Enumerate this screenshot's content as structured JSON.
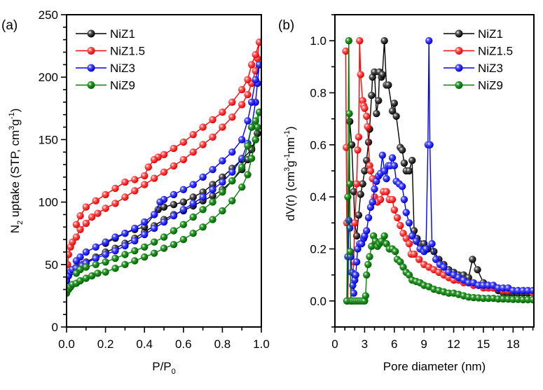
{
  "chart_data": [
    {
      "type": "line",
      "panel_label": "(a)",
      "title": "",
      "xlabel": "P/P",
      "xlabel_sub": "0",
      "ylabel_parts": [
        "N",
        "2",
        " uptake (STP, cm",
        "3",
        "g",
        "-1",
        ")"
      ],
      "xlim": [
        0.0,
        1.0
      ],
      "ylim": [
        0,
        250
      ],
      "xticks": [
        0.0,
        0.2,
        0.4,
        0.6,
        0.8,
        1.0
      ],
      "xtick_labels": [
        "0.0",
        "0.2",
        "0.4",
        "0.6",
        "0.8",
        "1.0"
      ],
      "yticks": [
        0,
        50,
        100,
        150,
        200,
        250
      ],
      "ytick_labels": [
        "0",
        "50",
        "100",
        "150",
        "200",
        "250"
      ],
      "grid": false,
      "legend_position": "top-left",
      "series": [
        {
          "name": "NiZ1",
          "color": "#000000",
          "adsorption": {
            "x": [
              0.0,
              0.01,
              0.03,
              0.05,
              0.08,
              0.1,
              0.15,
              0.2,
              0.25,
              0.3,
              0.35,
              0.4,
              0.45,
              0.5,
              0.55,
              0.6,
              0.65,
              0.7,
              0.75,
              0.8,
              0.85,
              0.9,
              0.93,
              0.95,
              0.97,
              0.98
            ],
            "y": [
              37,
              42,
              46,
              48,
              50,
              52,
              56,
              60,
              63,
              67,
              71,
              76,
              81,
              86,
              90,
              93,
              97,
              101,
              105,
              110,
              117,
              126,
              134,
              143,
              150,
              155
            ]
          },
          "desorption": {
            "x": [
              0.98,
              0.95,
              0.9,
              0.85,
              0.8,
              0.75,
              0.7,
              0.65,
              0.6,
              0.55,
              0.5,
              0.47,
              0.45,
              0.4,
              0.35,
              0.3,
              0.25,
              0.2
            ],
            "y": [
              155,
              142,
              134,
              127,
              120,
              114,
              108,
              104,
              100,
              98,
              96,
              94,
              90,
              80,
              78,
              75,
              71,
              67
            ]
          }
        },
        {
          "name": "NiZ1.5",
          "color": "#ff0000",
          "adsorption": {
            "x": [
              0.0,
              0.005,
              0.01,
              0.02,
              0.03,
              0.05,
              0.07,
              0.1,
              0.13,
              0.16,
              0.2,
              0.25,
              0.3,
              0.35,
              0.4,
              0.45,
              0.5,
              0.55,
              0.6,
              0.65,
              0.7,
              0.75,
              0.8,
              0.85,
              0.9,
              0.93,
              0.95,
              0.97,
              0.98,
              0.99
            ],
            "y": [
              40,
              50,
              58,
              64,
              68,
              72,
              78,
              83,
              88,
              91,
              95,
              99,
              104,
              109,
              114,
              119,
              124,
              129,
              134,
              140,
              146,
              152,
              160,
              168,
              178,
              186,
              195,
              205,
              215,
              228
            ]
          },
          "desorption": {
            "x": [
              0.99,
              0.97,
              0.95,
              0.93,
              0.9,
              0.85,
              0.8,
              0.75,
              0.7,
              0.65,
              0.6,
              0.55,
              0.5,
              0.47,
              0.45,
              0.42,
              0.4,
              0.35,
              0.3,
              0.25,
              0.2,
              0.15,
              0.1,
              0.07,
              0.05
            ],
            "y": [
              228,
              218,
              210,
              198,
              190,
              180,
              172,
              166,
              160,
              154,
              148,
              143,
              138,
              136,
              134,
              128,
              121,
              118,
              116,
              111,
              106,
              101,
              96,
              89,
              82
            ]
          }
        },
        {
          "name": "NiZ3",
          "color": "#0000ff",
          "adsorption": {
            "x": [
              0.0,
              0.01,
              0.02,
              0.03,
              0.05,
              0.08,
              0.1,
              0.15,
              0.2,
              0.25,
              0.3,
              0.35,
              0.4,
              0.45,
              0.5,
              0.55,
              0.6,
              0.65,
              0.7,
              0.75,
              0.8,
              0.85,
              0.9,
              0.93,
              0.95,
              0.97,
              0.98,
              0.99
            ],
            "y": [
              37,
              41,
              44,
              46,
              47,
              49,
              51,
              55,
              58,
              61,
              65,
              69,
              74,
              79,
              84,
              89,
              94,
              99,
              104,
              110,
              116,
              124,
              135,
              147,
              160,
              180,
              195,
              210
            ]
          },
          "desorption": {
            "x": [
              0.99,
              0.97,
              0.95,
              0.93,
              0.9,
              0.85,
              0.8,
              0.75,
              0.7,
              0.65,
              0.6,
              0.55,
              0.5,
              0.48,
              0.45,
              0.4,
              0.35,
              0.3,
              0.25,
              0.2,
              0.15,
              0.1,
              0.07,
              0.05
            ],
            "y": [
              210,
              198,
              180,
              165,
              150,
              140,
              133,
              126,
              120,
              114,
              110,
              106,
              102,
              100,
              90,
              84,
              79,
              75,
              72,
              68,
              64,
              60,
              56,
              53
            ]
          }
        },
        {
          "name": "NiZ9",
          "color": "#008000",
          "adsorption": {
            "x": [
              0.0,
              0.01,
              0.02,
              0.03,
              0.05,
              0.07,
              0.1,
              0.13,
              0.16,
              0.2,
              0.25,
              0.3,
              0.35,
              0.4,
              0.45,
              0.5,
              0.55,
              0.6,
              0.65,
              0.7,
              0.75,
              0.8,
              0.85,
              0.9,
              0.93,
              0.95,
              0.97,
              0.98,
              0.99
            ],
            "y": [
              27,
              30,
              32,
              34,
              35,
              37,
              39,
              41,
              43,
              44,
              47,
              50,
              53,
              56,
              59,
              63,
              66,
              70,
              75,
              80,
              86,
              93,
              101,
              112,
              122,
              135,
              150,
              160,
              172
            ]
          },
          "desorption": {
            "x": [
              0.99,
              0.97,
              0.95,
              0.93,
              0.9,
              0.85,
              0.8,
              0.75,
              0.7,
              0.65,
              0.6,
              0.55,
              0.5,
              0.45,
              0.4,
              0.35,
              0.3,
              0.25,
              0.2,
              0.15,
              0.1,
              0.07,
              0.05
            ],
            "y": [
              172,
              165,
              160,
              145,
              128,
              117,
              108,
              100,
              94,
              88,
              82,
              77,
              72,
              68,
              64,
              61,
              58,
              55,
              52,
              50,
              48,
              46,
              43
            ]
          }
        }
      ]
    },
    {
      "type": "line",
      "panel_label": "(b)",
      "title": "",
      "xlabel": "Pore diameter (nm)",
      "ylabel_parts": [
        "dV(r) (cm",
        "3",
        "g",
        "-1",
        "nm",
        "-1",
        ")"
      ],
      "xlim": [
        0,
        20.1
      ],
      "ylim": [
        -0.1,
        1.1
      ],
      "xticks": [
        0,
        3,
        6,
        9,
        12,
        15,
        18
      ],
      "xtick_labels": [
        "0",
        "3",
        "6",
        "9",
        "12",
        "15",
        "18"
      ],
      "yticks": [
        0.0,
        0.2,
        0.4,
        0.6,
        0.8,
        1.0
      ],
      "ytick_labels": [
        "0.0",
        "0.2",
        "0.4",
        "0.6",
        "0.8",
        "1.0"
      ],
      "grid": false,
      "legend_position": "top-right",
      "series": [
        {
          "name": "NiZ1",
          "color": "#000000",
          "x": [
            1.3,
            1.5,
            1.7,
            1.9,
            2.0,
            2.2,
            2.4,
            2.6,
            2.8,
            3.0,
            3.2,
            3.4,
            3.5,
            3.7,
            3.8,
            4.0,
            4.2,
            4.4,
            4.5,
            4.7,
            4.8,
            5.0,
            5.2,
            5.4,
            5.8,
            6.0,
            6.2,
            6.6,
            6.8,
            7.0,
            7.2,
            7.5,
            7.8,
            8.0,
            8.3,
            8.6,
            9.0,
            9.4,
            10.0,
            10.5,
            11.0,
            11.5,
            12.0,
            12.5,
            13.0,
            13.5,
            13.9,
            14.4,
            15.0,
            15.5,
            16.0,
            16.5,
            17.0,
            17.5,
            18.0,
            18.5,
            19.0,
            19.5,
            20.0
          ],
          "y": [
            0.0,
            0.69,
            0.6,
            0.42,
            0.3,
            0.25,
            0.33,
            0.41,
            0.45,
            0.5,
            0.54,
            0.61,
            0.66,
            0.79,
            0.86,
            0.88,
            0.72,
            0.77,
            0.88,
            0.86,
            0.87,
            1.0,
            0.83,
            0.83,
            0.73,
            0.76,
            0.71,
            0.59,
            0.58,
            0.53,
            0.5,
            0.5,
            0.54,
            0.27,
            0.24,
            0.22,
            0.22,
            0.2,
            0.19,
            0.16,
            0.14,
            0.12,
            0.11,
            0.1,
            0.1,
            0.09,
            0.16,
            0.12,
            0.07,
            0.06,
            0.05,
            0.04,
            0.03,
            0.03,
            0.03,
            0.03,
            0.03,
            0.03,
            0.03
          ]
        },
        {
          "name": "NiZ1.5",
          "color": "#ff0000",
          "x": [
            1.1,
            1.15,
            1.2,
            1.3,
            1.6,
            1.9,
            2.0,
            2.2,
            2.3,
            2.4,
            2.5,
            2.6,
            2.8,
            2.9,
            3.0,
            3.2,
            3.3,
            3.5,
            3.6,
            3.8,
            4.0,
            4.3,
            4.6,
            4.9,
            5.2,
            5.5,
            5.8,
            6.0,
            6.3,
            6.6,
            6.9,
            7.2,
            7.5,
            7.7,
            8.0,
            8.5,
            9.0,
            9.5,
            10.0,
            10.5,
            11.0,
            11.5,
            12.0,
            12.5,
            13.0,
            13.5,
            14.0,
            14.5,
            15.0,
            15.5,
            16.0,
            16.5,
            17.0,
            17.5,
            18.0,
            18.5,
            19.0,
            19.5,
            20.0
          ],
          "y": [
            0.96,
            0.59,
            0.3,
            0.0,
            0.0,
            0.15,
            0.3,
            0.45,
            0.58,
            0.63,
            1.0,
            0.87,
            0.77,
            0.75,
            0.74,
            0.71,
            0.67,
            0.52,
            0.5,
            0.47,
            0.4,
            0.38,
            0.39,
            0.42,
            0.42,
            0.39,
            0.39,
            0.35,
            0.32,
            0.29,
            0.26,
            0.24,
            0.22,
            0.18,
            0.18,
            0.16,
            0.14,
            0.13,
            0.12,
            0.11,
            0.1,
            0.09,
            0.08,
            0.08,
            0.07,
            0.07,
            0.06,
            0.06,
            0.05,
            0.05,
            0.05,
            0.05,
            0.04,
            0.04,
            0.04,
            0.04,
            0.04,
            0.04,
            0.03
          ]
        },
        {
          "name": "NiZ3",
          "color": "#0000ff",
          "x": [
            1.2,
            1.3,
            1.4,
            1.5,
            1.6,
            1.7,
            1.8,
            1.9,
            2.0,
            2.1,
            2.2,
            2.3,
            2.5,
            2.7,
            2.9,
            3.0,
            3.2,
            3.4,
            3.6,
            3.8,
            4.0,
            4.2,
            4.4,
            4.6,
            4.8,
            5.0,
            5.2,
            5.4,
            5.6,
            5.8,
            6.0,
            6.2,
            6.5,
            6.8,
            7.0,
            7.2,
            7.5,
            7.8,
            8.2,
            8.6,
            9.0,
            9.2,
            9.4,
            9.5,
            9.6,
            9.8,
            10.2,
            10.6,
            11.0,
            11.5,
            12.0,
            12.5,
            13.0,
            13.5,
            14.0,
            14.5,
            15.0,
            15.5,
            16.0,
            16.5,
            17.0,
            17.5,
            18.0,
            18.5,
            19.0,
            19.5,
            20.0
          ],
          "y": [
            0.0,
            0.17,
            0.31,
            0.28,
            0.17,
            0.11,
            0.06,
            0.03,
            0.08,
            0.1,
            0.15,
            0.2,
            0.22,
            0.22,
            0.24,
            0.25,
            0.27,
            0.32,
            0.36,
            0.38,
            0.43,
            0.46,
            0.48,
            0.49,
            0.56,
            0.5,
            0.47,
            0.52,
            0.52,
            0.55,
            0.52,
            0.46,
            0.45,
            0.44,
            0.39,
            0.34,
            0.3,
            0.25,
            0.23,
            0.2,
            0.19,
            0.2,
            0.6,
            1.0,
            0.6,
            0.22,
            0.16,
            0.14,
            0.13,
            0.11,
            0.1,
            0.09,
            0.08,
            0.07,
            0.07,
            0.06,
            0.06,
            0.06,
            0.06,
            0.05,
            0.05,
            0.05,
            0.04,
            0.04,
            0.04,
            0.04,
            0.04
          ]
        },
        {
          "name": "NiZ9",
          "color": "#008000",
          "x": [
            1.2,
            1.3,
            1.4,
            1.45,
            1.5,
            1.55,
            1.6,
            1.7,
            1.8,
            2.0,
            2.2,
            2.4,
            2.6,
            2.8,
            3.0,
            3.1,
            3.2,
            3.35,
            3.5,
            3.7,
            3.9,
            4.1,
            4.3,
            4.5,
            4.7,
            5.0,
            5.2,
            5.5,
            5.8,
            6.1,
            6.3,
            6.6,
            6.9,
            7.2,
            7.5,
            7.8,
            8.2,
            8.6,
            9.0,
            9.5,
            10.0,
            10.5,
            11.0,
            11.5,
            12.0,
            12.5,
            13.0,
            13.5,
            14.0,
            14.5,
            15.0,
            15.5,
            16.0,
            16.5,
            17.0,
            17.5,
            18.0,
            18.5,
            19.0,
            19.5,
            20.0
          ],
          "y": [
            0.0,
            0.4,
            1.0,
            0.72,
            0.45,
            0.19,
            0.0,
            0.0,
            0.0,
            0.0,
            0.0,
            0.0,
            0.0,
            0.0,
            0.0,
            0.02,
            0.1,
            0.14,
            0.17,
            0.21,
            0.25,
            0.23,
            0.21,
            0.22,
            0.23,
            0.25,
            0.22,
            0.2,
            0.2,
            0.19,
            0.16,
            0.15,
            0.13,
            0.11,
            0.1,
            0.08,
            0.075,
            0.07,
            0.06,
            0.055,
            0.045,
            0.04,
            0.035,
            0.03,
            0.03,
            0.025,
            0.02,
            0.015,
            0.013,
            0.012,
            0.01,
            0.01,
            0.01,
            0.008,
            0.008,
            0.007,
            0.006,
            0.006,
            0.005,
            0.005,
            0.005
          ]
        }
      ]
    }
  ]
}
